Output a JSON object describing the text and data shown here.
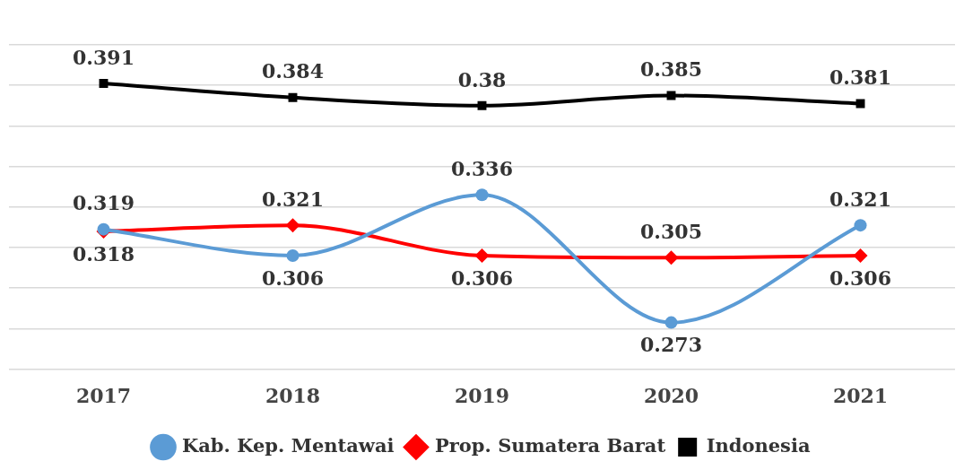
{
  "chart_data": {
    "type": "line",
    "categories": [
      "2017",
      "2018",
      "2019",
      "2020",
      "2021"
    ],
    "series": [
      {
        "name": "Kab. Kep. Mentawai",
        "color": "#5b9bd5",
        "marker": "circle",
        "values": [
          0.319,
          0.306,
          0.336,
          0.273,
          0.321
        ]
      },
      {
        "name": "Prop. Sumatera Barat",
        "color": "#ff0000",
        "marker": "diamond",
        "values": [
          0.318,
          0.321,
          0.306,
          0.305,
          0.306
        ]
      },
      {
        "name": "Indonesia",
        "color": "#000000",
        "marker": "square",
        "values": [
          0.391,
          0.384,
          0.38,
          0.385,
          0.381
        ]
      }
    ],
    "ylim": [
      0.25,
      0.41
    ],
    "yticks": [
      {
        "value": 0.25,
        "label": null
      },
      {
        "value": 0.27,
        "label": null
      },
      {
        "value": 0.29,
        "label": null
      },
      {
        "value": 0.31,
        "label": null
      },
      {
        "value": 0.33,
        "label": null
      },
      {
        "value": 0.35,
        "label": null
      },
      {
        "value": 0.37,
        "label": null
      },
      {
        "value": 0.39,
        "label": null
      },
      {
        "value": 0.41,
        "label": null
      }
    ],
    "tick_labels": "x",
    "grid": "y",
    "legend": "bottom",
    "data_labels": true
  }
}
